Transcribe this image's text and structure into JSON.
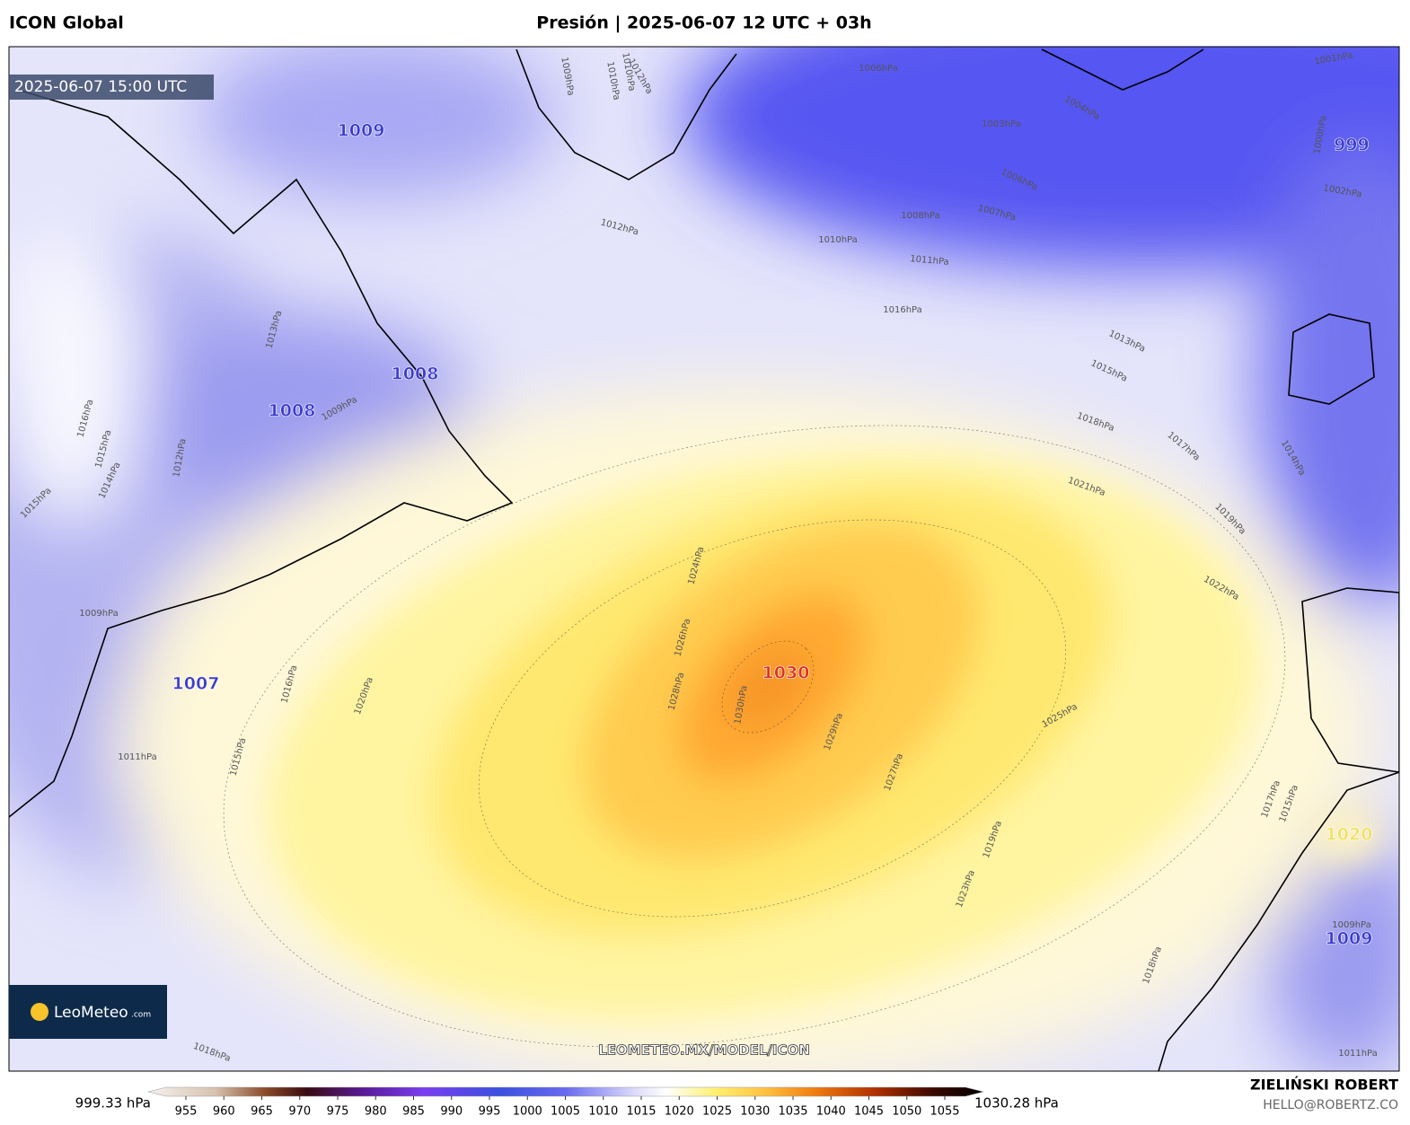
{
  "header": {
    "model": "ICON Global",
    "title": "Presión | 2025-06-07 12 UTC + 03h"
  },
  "map": {
    "timestamp": "2025-06-07 15:00 UTC",
    "centers": [
      "1009",
      "1008",
      "1008",
      "1007",
      "1030",
      "999",
      "1020",
      "1009"
    ],
    "contour_labels": [
      "1010hPa",
      "1009hPa",
      "1010hPa",
      "1012hPa",
      "1006hPa",
      "1004hPa",
      "1003hPa",
      "1001hPa",
      "1000hPa",
      "1002hPa",
      "1006hPa",
      "1007hPa",
      "1008hPa",
      "1010hPa",
      "1011hPa",
      "1012hPa",
      "1016hPa",
      "1013hPa",
      "1009hPa",
      "1016hPa",
      "1015hPa",
      "1014hPa",
      "1012hPa",
      "1015hPa",
      "1013hPa",
      "1015hPa",
      "1018hPa",
      "1017hPa",
      "1014hPa",
      "1021hPa",
      "1019hPa",
      "1022hPa",
      "1024hPa",
      "1026hPa",
      "1028hPa",
      "1030hPa",
      "1029hPa",
      "1027hPa",
      "1025hPa",
      "1020hPa",
      "1016hPa",
      "1015hPa",
      "1011hPa",
      "1009hPa",
      "1023hPa",
      "1019hPa",
      "1018hPa",
      "1017hPa",
      "1015hPa",
      "1018hPa",
      "1011hPa",
      "1009hPa"
    ],
    "watermark": "LEOMETEO.MX/MODEL/ICON",
    "logo": {
      "name": "LeoMeteo",
      "suffix": ".com"
    }
  },
  "colorbar": {
    "min_label": "999.33 hPa",
    "max_label": "1030.28 hPa",
    "ticks": [
      955,
      960,
      965,
      970,
      975,
      980,
      985,
      990,
      995,
      1000,
      1005,
      1010,
      1015,
      1020,
      1025,
      1030,
      1035,
      1040,
      1045,
      1050,
      1055
    ]
  },
  "credits": {
    "author": "ZIELIŃSKI ROBERT",
    "contact": "HELLO@ROBERTZ.CO"
  }
}
